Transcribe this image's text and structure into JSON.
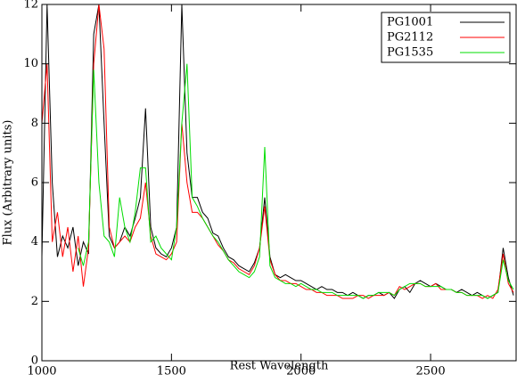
{
  "chart_data": {
    "type": "line",
    "xlabel": "Rest Wavelength",
    "ylabel": "Flux (Arbitrary units)",
    "xlim": [
      1000,
      2830
    ],
    "ylim": [
      0,
      12
    ],
    "xticks": [
      1000,
      1500,
      2000,
      2500
    ],
    "yticks": [
      0,
      2,
      4,
      6,
      8,
      10,
      12
    ],
    "legend": "upper right",
    "x": [
      1000,
      1020,
      1040,
      1060,
      1080,
      1100,
      1120,
      1140,
      1160,
      1180,
      1200,
      1220,
      1240,
      1260,
      1280,
      1300,
      1320,
      1340,
      1360,
      1380,
      1400,
      1420,
      1440,
      1460,
      1480,
      1500,
      1520,
      1540,
      1560,
      1580,
      1600,
      1620,
      1640,
      1660,
      1680,
      1700,
      1720,
      1740,
      1760,
      1780,
      1800,
      1820,
      1840,
      1860,
      1880,
      1900,
      1920,
      1940,
      1960,
      1980,
      2000,
      2020,
      2040,
      2060,
      2080,
      2100,
      2120,
      2140,
      2160,
      2180,
      2200,
      2220,
      2240,
      2260,
      2280,
      2300,
      2320,
      2340,
      2360,
      2380,
      2400,
      2420,
      2440,
      2460,
      2480,
      2500,
      2520,
      2540,
      2560,
      2580,
      2600,
      2620,
      2640,
      2660,
      2680,
      2700,
      2720,
      2740,
      2760,
      2780,
      2800,
      2820
    ],
    "series": [
      {
        "name": "PG1001",
        "color": "#000000",
        "values": [
          3.5,
          12,
          6,
          3.5,
          4.2,
          3.8,
          4.5,
          3.2,
          4.0,
          3.6,
          11,
          12,
          8,
          4.2,
          3.8,
          4.0,
          4.5,
          4.2,
          4.8,
          5.5,
          8.5,
          4.5,
          3.8,
          3.6,
          3.5,
          3.8,
          4.5,
          12,
          7,
          5.5,
          5.5,
          5,
          4.8,
          4.3,
          4.2,
          3.8,
          3.5,
          3.4,
          3.2,
          3.1,
          3.0,
          3.3,
          3.8,
          5.5,
          3.5,
          2.9,
          2.8,
          2.9,
          2.8,
          2.7,
          2.7,
          2.6,
          2.5,
          2.4,
          2.5,
          2.4,
          2.4,
          2.3,
          2.3,
          2.2,
          2.3,
          2.2,
          2.1,
          2.2,
          2.2,
          2.3,
          2.2,
          2.3,
          2.1,
          2.4,
          2.5,
          2.3,
          2.6,
          2.7,
          2.6,
          2.5,
          2.6,
          2.5,
          2.4,
          2.4,
          2.3,
          2.4,
          2.3,
          2.2,
          2.3,
          2.2,
          2.1,
          2.2,
          2.3,
          3.8,
          2.8,
          2.2
        ]
      },
      {
        "name": "PG2112",
        "color": "#ff0000",
        "values": [
          8,
          10,
          4,
          5,
          3.5,
          4.5,
          3.0,
          4.2,
          2.5,
          3.8,
          10,
          12,
          10.5,
          4.5,
          3.8,
          4,
          4.2,
          4,
          4.5,
          4.8,
          6,
          4.2,
          3.6,
          3.5,
          3.4,
          3.6,
          4,
          8,
          6,
          5,
          5,
          4.8,
          4.5,
          4.2,
          3.9,
          3.7,
          3.4,
          3.3,
          3.1,
          3.0,
          2.9,
          3.2,
          3.8,
          5.2,
          3.4,
          2.9,
          2.7,
          2.7,
          2.6,
          2.6,
          2.5,
          2.4,
          2.4,
          2.3,
          2.3,
          2.2,
          2.2,
          2.2,
          2.1,
          2.1,
          2.1,
          2.2,
          2.2,
          2.1,
          2.2,
          2.2,
          2.2,
          2.3,
          2.2,
          2.5,
          2.4,
          2.5,
          2.6,
          2.6,
          2.5,
          2.5,
          2.6,
          2.4,
          2.4,
          2.4,
          2.3,
          2.3,
          2.2,
          2.2,
          2.2,
          2.1,
          2.2,
          2.1,
          2.4,
          3.6,
          2.6,
          2.3
        ]
      },
      {
        "name": "PG1535",
        "color": "#00dd00",
        "values": [
          null,
          null,
          null,
          null,
          null,
          null,
          null,
          3.8,
          3.2,
          4.0,
          9.8,
          6,
          4.2,
          4.0,
          3.5,
          5.5,
          4.5,
          4.0,
          5.0,
          6.5,
          6.5,
          4.0,
          4.2,
          3.8,
          3.6,
          3.4,
          4.5,
          8,
          10,
          5.5,
          5.2,
          4.8,
          4.5,
          4.2,
          4,
          3.7,
          3.4,
          3.2,
          3.0,
          2.9,
          2.8,
          3.0,
          3.5,
          7.2,
          3.2,
          2.8,
          2.7,
          2.6,
          2.6,
          2.5,
          2.6,
          2.5,
          2.4,
          2.4,
          2.3,
          2.3,
          2.3,
          2.2,
          2.2,
          2.2,
          2.2,
          2.2,
          2.1,
          2.2,
          2.2,
          2.3,
          2.3,
          2.3,
          2.2,
          2.4,
          2.5,
          2.6,
          2.6,
          2.6,
          2.5,
          2.5,
          2.5,
          2.5,
          2.4,
          2.4,
          2.3,
          2.3,
          2.2,
          2.2,
          2.2,
          2.2,
          2.1,
          2.2,
          2.3,
          3.4,
          2.7,
          2.4
        ]
      }
    ]
  }
}
